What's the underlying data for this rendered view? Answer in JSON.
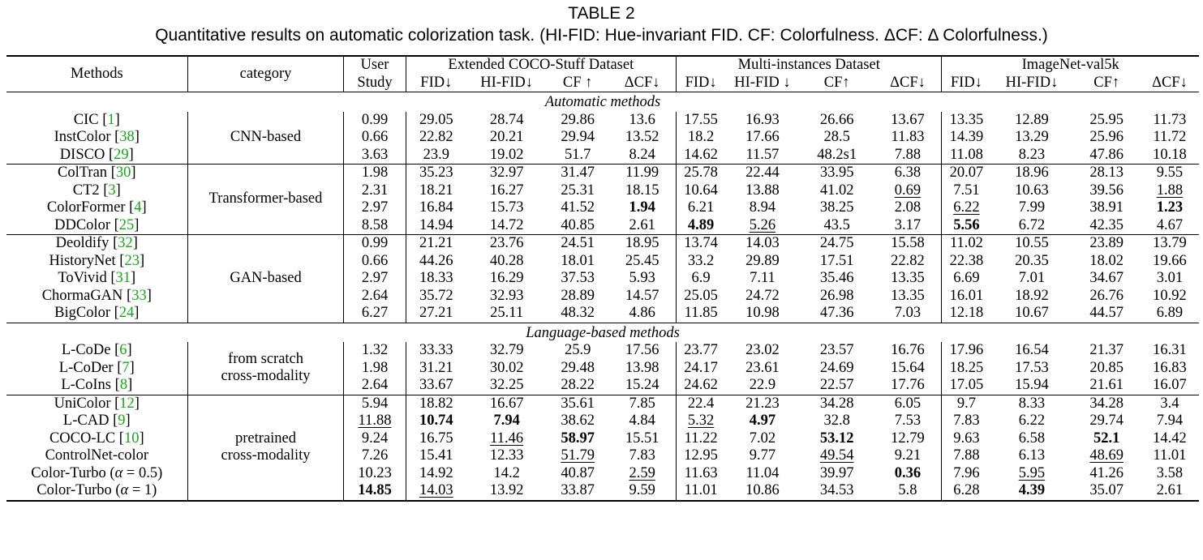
{
  "caption": {
    "title": "TABLE 2",
    "text": "Quantitative results on automatic colorization task. (HI-FID: Hue-invariant FID. CF: Colorfulness. ΔCF: Δ Colorfulness.)"
  },
  "header": {
    "methods": "Methods",
    "category": "category",
    "user_study_1": "User",
    "user_study_2": "Study",
    "groups": [
      "Extended COCO-Stuff Dataset",
      "Multi-instances Dataset",
      "ImageNet-val5k"
    ],
    "metrics": [
      [
        "FID↓",
        "HI-FID↓",
        "CF ↑",
        "ΔCF↓"
      ],
      [
        "FID↓",
        "HI-FID ↓",
        "CF↑",
        "ΔCF↓"
      ],
      [
        "FID↓",
        "HI-FID↓",
        "CF↑",
        "ΔCF↓"
      ]
    ]
  },
  "sections": {
    "automatic": "Automatic methods",
    "language": "Language-based methods"
  },
  "groups": [
    {
      "category": [
        "CNN-based"
      ],
      "rows": [
        {
          "name": "CIC",
          "ref": "1",
          "vals": [
            "0.99",
            "29.05",
            "28.74",
            "29.86",
            "13.6",
            "17.55",
            "16.93",
            "26.66",
            "13.67",
            "13.35",
            "12.89",
            "25.95",
            "11.73"
          ]
        },
        {
          "name": "InstColor",
          "ref": "38",
          "vals": [
            "0.66",
            "22.82",
            "20.21",
            "29.94",
            "13.52",
            "18.2",
            "17.66",
            "28.5",
            "11.83",
            "14.39",
            "13.29",
            "25.96",
            "11.72"
          ]
        },
        {
          "name": "DISCO",
          "ref": "29",
          "vals": [
            "3.63",
            "23.9",
            "19.02",
            "51.7",
            "8.24",
            "14.62",
            "11.57",
            "48.2s1",
            "7.88",
            "11.08",
            "8.23",
            "47.86",
            "10.18"
          ]
        }
      ]
    },
    {
      "category": [
        "Transformer-based"
      ],
      "rows": [
        {
          "name": "ColTran",
          "ref": "30",
          "vals": [
            "1.98",
            "35.23",
            "32.97",
            "31.47",
            "11.99",
            "25.78",
            "22.44",
            "33.95",
            "6.38",
            "20.07",
            "18.96",
            "28.13",
            "9.55"
          ]
        },
        {
          "name": "CT2",
          "ref": "3",
          "vals": [
            "2.31",
            "18.21",
            "16.27",
            "25.31",
            "18.15",
            "10.64",
            "13.88",
            "41.02",
            "0.69",
            "7.51",
            "10.63",
            "39.56",
            "1.88"
          ]
        },
        {
          "name": "ColorFormer",
          "ref": "4",
          "vals": [
            "2.97",
            "16.84",
            "15.73",
            "41.52",
            "1.94",
            "6.21",
            "8.94",
            "38.25",
            "2.08",
            "6.22",
            "7.99",
            "38.91",
            "1.23"
          ]
        },
        {
          "name": "DDColor",
          "ref": "25",
          "vals": [
            "8.58",
            "14.94",
            "14.72",
            "40.85",
            "2.61",
            "4.89",
            "5.26",
            "43.5",
            "3.17",
            "5.56",
            "6.72",
            "42.35",
            "4.67"
          ]
        }
      ]
    },
    {
      "category": [
        "GAN-based"
      ],
      "rows": [
        {
          "name": "Deoldify",
          "ref": "32",
          "vals": [
            "0.99",
            "21.21",
            "23.76",
            "24.51",
            "18.95",
            "13.74",
            "14.03",
            "24.75",
            "15.58",
            "11.02",
            "10.55",
            "23.89",
            "13.79"
          ]
        },
        {
          "name": "HistoryNet",
          "ref": "23",
          "vals": [
            "0.66",
            "44.26",
            "40.28",
            "18.01",
            "25.45",
            "33.2",
            "29.89",
            "17.51",
            "22.82",
            "22.38",
            "20.35",
            "18.02",
            "19.66"
          ]
        },
        {
          "name": "ToVivid",
          "ref": "31",
          "vals": [
            "2.97",
            "18.33",
            "16.29",
            "37.53",
            "5.93",
            "6.9",
            "7.11",
            "35.46",
            "13.35",
            "6.69",
            "7.01",
            "34.67",
            "3.01"
          ]
        },
        {
          "name": "ChormaGAN",
          "ref": "33",
          "vals": [
            "2.64",
            "35.72",
            "32.93",
            "28.89",
            "14.57",
            "25.05",
            "24.72",
            "26.98",
            "13.35",
            "16.01",
            "18.92",
            "26.76",
            "10.92"
          ]
        },
        {
          "name": "BigColor",
          "ref": "24",
          "vals": [
            "6.27",
            "27.21",
            "25.11",
            "48.32",
            "4.86",
            "11.85",
            "10.98",
            "47.36",
            "7.03",
            "12.18",
            "10.67",
            "44.57",
            "6.89"
          ]
        }
      ]
    },
    {
      "category": [
        "from scratch",
        "cross-modality"
      ],
      "rows": [
        {
          "name": "L-CoDe",
          "ref": "6",
          "vals": [
            "1.32",
            "33.33",
            "32.79",
            "25.9",
            "17.56",
            "23.77",
            "23.02",
            "23.57",
            "16.76",
            "17.96",
            "16.54",
            "21.37",
            "16.31"
          ]
        },
        {
          "name": "L-CoDer",
          "ref": "7",
          "vals": [
            "1.98",
            "31.21",
            "30.02",
            "29.48",
            "13.98",
            "24.17",
            "23.61",
            "24.69",
            "15.64",
            "18.25",
            "17.53",
            "20.85",
            "16.83"
          ]
        },
        {
          "name": "L-CoIns",
          "ref": "8",
          "vals": [
            "2.64",
            "33.67",
            "32.25",
            "28.22",
            "15.24",
            "24.62",
            "22.9",
            "22.57",
            "17.76",
            "17.05",
            "15.94",
            "21.61",
            "16.07"
          ]
        }
      ]
    },
    {
      "category": [
        "pretrained",
        "cross-modality"
      ],
      "rows": [
        {
          "name": "UniColor",
          "ref": "12",
          "vals": [
            "5.94",
            "18.82",
            "16.67",
            "35.61",
            "7.85",
            "22.4",
            "21.23",
            "34.28",
            "6.05",
            "9.7",
            "8.33",
            "34.28",
            "3.4"
          ]
        },
        {
          "name": "L-CAD",
          "ref": "9",
          "vals": [
            "11.88",
            "10.74",
            "7.94",
            "38.62",
            "4.84",
            "5.32",
            "4.97",
            "32.8",
            "7.53",
            "7.83",
            "6.22",
            "29.74",
            "7.94"
          ]
        },
        {
          "name": "COCO-LC",
          "ref": "10",
          "vals": [
            "9.24",
            "16.75",
            "11.46",
            "58.97",
            "15.51",
            "11.22",
            "7.02",
            "53.12",
            "12.79",
            "9.63",
            "6.58",
            "52.1",
            "14.42"
          ]
        },
        {
          "name": "ControlNet-color",
          "ref": "",
          "vals": [
            "7.26",
            "15.41",
            "12.33",
            "51.79",
            "7.83",
            "12.95",
            "9.77",
            "49.54",
            "9.21",
            "7.88",
            "6.13",
            "48.69",
            "11.01"
          ]
        },
        {
          "name": "Color-Turbo (α = 0.5)",
          "ref": "",
          "vals": [
            "10.23",
            "14.92",
            "14.2",
            "40.87",
            "2.59",
            "11.63",
            "11.04",
            "39.97",
            "0.36",
            "7.96",
            "5.95",
            "41.26",
            "3.58"
          ]
        },
        {
          "name": "Color-Turbo (α = 1)",
          "ref": "",
          "vals": [
            "14.85",
            "14.03",
            "13.92",
            "33.87",
            "9.59",
            "11.01",
            "10.86",
            "34.53",
            "5.8",
            "6.28",
            "4.39",
            "35.07",
            "2.61"
          ]
        }
      ]
    }
  ]
}
